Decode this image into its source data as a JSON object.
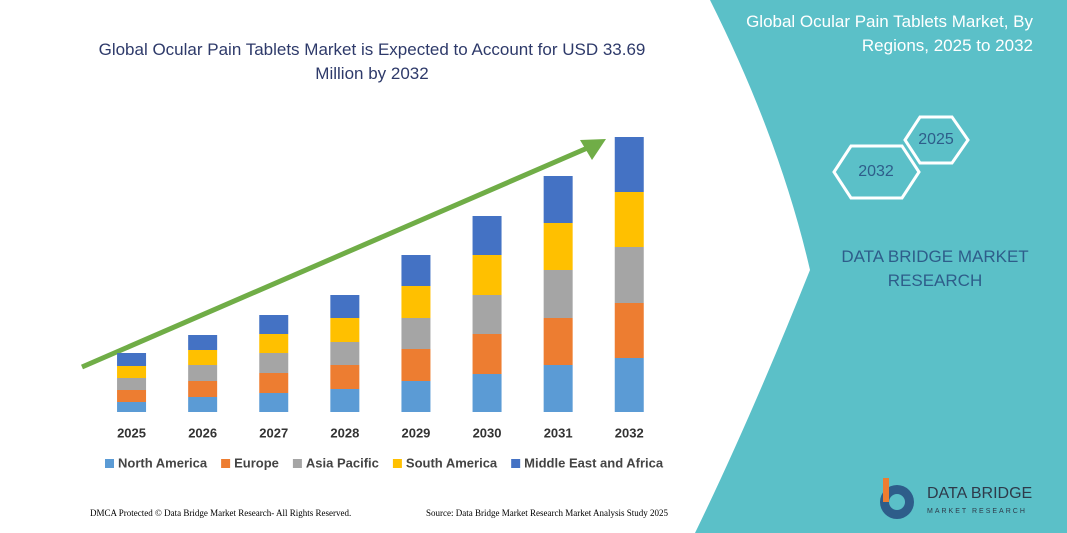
{
  "chart_data": {
    "type": "stacked-bar",
    "title": "Global Ocular Pain Tablets Market is Expected to Account for USD 33.69 Million by 2032",
    "categories": [
      "2025",
      "2026",
      "2027",
      "2028",
      "2029",
      "2030",
      "2031",
      "2032"
    ],
    "series": [
      {
        "name": "North America",
        "color": "#5b9bd5",
        "values": [
          10,
          15,
          19,
          23,
          31,
          38,
          47,
          54
        ]
      },
      {
        "name": "Europe",
        "color": "#ed7d31",
        "values": [
          12,
          16,
          20,
          24,
          32,
          40,
          47,
          55
        ]
      },
      {
        "name": "Asia Pacific",
        "color": "#a5a5a5",
        "values": [
          12,
          16,
          20,
          23,
          31,
          39,
          48,
          56
        ]
      },
      {
        "name": "South America",
        "color": "#ffc000",
        "values": [
          12,
          15,
          19,
          24,
          32,
          40,
          47,
          55
        ]
      },
      {
        "name": "Middle East and Africa",
        "color": "#4472c4",
        "values": [
          13,
          15,
          19,
          23,
          31,
          39,
          47,
          55
        ]
      }
    ],
    "ylim": [
      0,
      275
    ]
  },
  "panel": {
    "title": "Global Ocular Pain Tablets Market, By Regions, 2025 to 2032",
    "hex_top": "2025",
    "hex_bottom": "2032",
    "brand": "DATA BRIDGE MARKET RESEARCH",
    "logo_name": "DATA BRIDGE",
    "logo_sub": "MARKET RESEARCH"
  },
  "footer": {
    "left": "DMCA Protected © Data Bridge Market Research- All Rights Reserved.",
    "right": "Source: Data Bridge Market Research Market Analysis Study 2025"
  }
}
